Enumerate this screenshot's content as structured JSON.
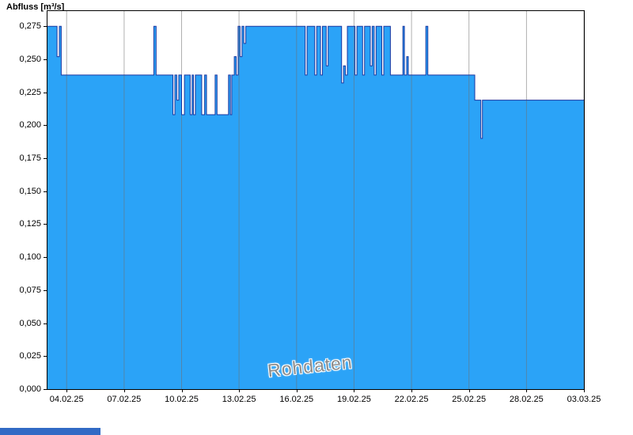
{
  "chart_data": {
    "type": "area",
    "title": "Abfluss [m³/s]",
    "watermark": "Rohdaten",
    "legend": "none",
    "grid": "vertical-only",
    "x_range_days": [
      0,
      28
    ],
    "y_range": [
      0,
      0.2865
    ],
    "x_ticks": [
      {
        "day": 1,
        "label": "04.02.25"
      },
      {
        "day": 4,
        "label": "07.02.25"
      },
      {
        "day": 7,
        "label": "10.02.25"
      },
      {
        "day": 10,
        "label": "13.02.25"
      },
      {
        "day": 13,
        "label": "16.02.25"
      },
      {
        "day": 16,
        "label": "19.02.25"
      },
      {
        "day": 19,
        "label": "22.02.25"
      },
      {
        "day": 22,
        "label": "25.02.25"
      },
      {
        "day": 25,
        "label": "28.02.25"
      },
      {
        "day": 28,
        "label": "03.03.25"
      }
    ],
    "y_ticks": [
      {
        "value": 0.0,
        "label": "0,000"
      },
      {
        "value": 0.025,
        "label": "0,025"
      },
      {
        "value": 0.05,
        "label": "0,050"
      },
      {
        "value": 0.075,
        "label": "0,075"
      },
      {
        "value": 0.1,
        "label": "0,100"
      },
      {
        "value": 0.125,
        "label": "0,125"
      },
      {
        "value": 0.15,
        "label": "0,150"
      },
      {
        "value": 0.175,
        "label": "0,175"
      },
      {
        "value": 0.2,
        "label": "0,200"
      },
      {
        "value": 0.225,
        "label": "0,225"
      },
      {
        "value": 0.25,
        "label": "0,250"
      },
      {
        "value": 0.275,
        "label": "0,275"
      }
    ],
    "series": [
      {
        "name": "Abfluss Rohdaten",
        "unit": "m³/s",
        "step": true,
        "points": [
          [
            0,
            0.275
          ],
          [
            0.5,
            0.252
          ],
          [
            0.62,
            0.275
          ],
          [
            0.72,
            0.238
          ],
          [
            5.55,
            0.275
          ],
          [
            5.67,
            0.238
          ],
          [
            6.55,
            0.208
          ],
          [
            6.65,
            0.238
          ],
          [
            6.75,
            0.219
          ],
          [
            6.85,
            0.238
          ],
          [
            7.0,
            0.208
          ],
          [
            7.15,
            0.238
          ],
          [
            7.45,
            0.208
          ],
          [
            7.55,
            0.238
          ],
          [
            7.62,
            0.208
          ],
          [
            7.72,
            0.238
          ],
          [
            8.05,
            0.208
          ],
          [
            8.2,
            0.238
          ],
          [
            8.3,
            0.208
          ],
          [
            8.75,
            0.238
          ],
          [
            8.85,
            0.208
          ],
          [
            9.45,
            0.238
          ],
          [
            9.55,
            0.208
          ],
          [
            9.62,
            0.238
          ],
          [
            9.75,
            0.252
          ],
          [
            9.85,
            0.238
          ],
          [
            9.95,
            0.275
          ],
          [
            10.05,
            0.252
          ],
          [
            10.15,
            0.275
          ],
          [
            10.25,
            0.262
          ],
          [
            10.35,
            0.275
          ],
          [
            13.45,
            0.238
          ],
          [
            13.55,
            0.275
          ],
          [
            13.95,
            0.238
          ],
          [
            14.05,
            0.275
          ],
          [
            14.25,
            0.238
          ],
          [
            14.35,
            0.275
          ],
          [
            14.55,
            0.245
          ],
          [
            14.65,
            0.275
          ],
          [
            15.35,
            0.232
          ],
          [
            15.45,
            0.245
          ],
          [
            15.55,
            0.238
          ],
          [
            15.65,
            0.275
          ],
          [
            16.05,
            0.238
          ],
          [
            16.15,
            0.275
          ],
          [
            16.45,
            0.238
          ],
          [
            16.55,
            0.275
          ],
          [
            16.85,
            0.245
          ],
          [
            16.95,
            0.275
          ],
          [
            17.05,
            0.238
          ],
          [
            17.15,
            0.275
          ],
          [
            17.45,
            0.238
          ],
          [
            17.55,
            0.275
          ],
          [
            17.9,
            0.238
          ],
          [
            18.55,
            0.275
          ],
          [
            18.63,
            0.238
          ],
          [
            18.75,
            0.252
          ],
          [
            18.83,
            0.238
          ],
          [
            19.75,
            0.275
          ],
          [
            19.85,
            0.238
          ],
          [
            22.3,
            0.219
          ],
          [
            22.62,
            0.19
          ],
          [
            22.7,
            0.219
          ],
          [
            28,
            0.219
          ]
        ]
      }
    ],
    "colors": {
      "fill": "#2ba3f7",
      "line": "#1a36a0",
      "grid": "#707070",
      "axis": "#000000",
      "watermark_text": "#8c8c8c",
      "footer_bar": "#316ac5"
    }
  }
}
